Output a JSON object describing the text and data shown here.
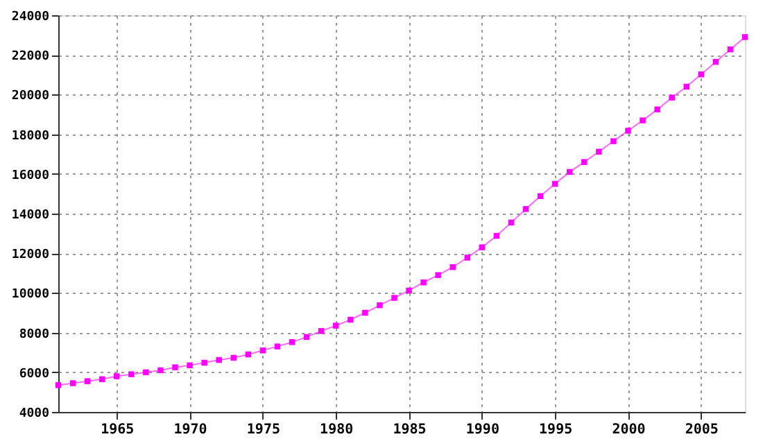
{
  "chart_data": {
    "type": "line",
    "x": [
      1961,
      1962,
      1963,
      1964,
      1965,
      1966,
      1967,
      1968,
      1969,
      1970,
      1971,
      1972,
      1973,
      1974,
      1975,
      1976,
      1977,
      1978,
      1979,
      1980,
      1981,
      1982,
      1983,
      1984,
      1985,
      1986,
      1987,
      1988,
      1989,
      1990,
      1991,
      1992,
      1993,
      1994,
      1995,
      1996,
      1997,
      1998,
      1999,
      2000,
      2001,
      2002,
      2003,
      2004,
      2005,
      2006,
      2007,
      2008
    ],
    "series": [
      {
        "color": "#ff00ff",
        "values": [
          5350,
          5450,
          5550,
          5650,
          5800,
          5900,
          6000,
          6100,
          6250,
          6350,
          6480,
          6620,
          6730,
          6900,
          7100,
          7300,
          7520,
          7780,
          8080,
          8350,
          8650,
          9000,
          9380,
          9750,
          10120,
          10530,
          10900,
          11300,
          11780,
          12300,
          12880,
          13550,
          14230,
          14880,
          15500,
          16100,
          16600,
          17120,
          17650,
          18180,
          18700,
          19250,
          19850,
          20400,
          21020,
          21650,
          22280,
          22900
        ]
      }
    ],
    "xlim": [
      1961,
      2008
    ],
    "xticks": [
      1965,
      1970,
      1975,
      1980,
      1985,
      1990,
      1995,
      2000,
      2005
    ],
    "ylim": [
      4000,
      24000
    ],
    "yticks": [
      4000,
      6000,
      8000,
      10000,
      12000,
      14000,
      16000,
      18000,
      20000,
      22000,
      24000
    ],
    "grid": true,
    "marker": "square",
    "line_style": "solid"
  }
}
